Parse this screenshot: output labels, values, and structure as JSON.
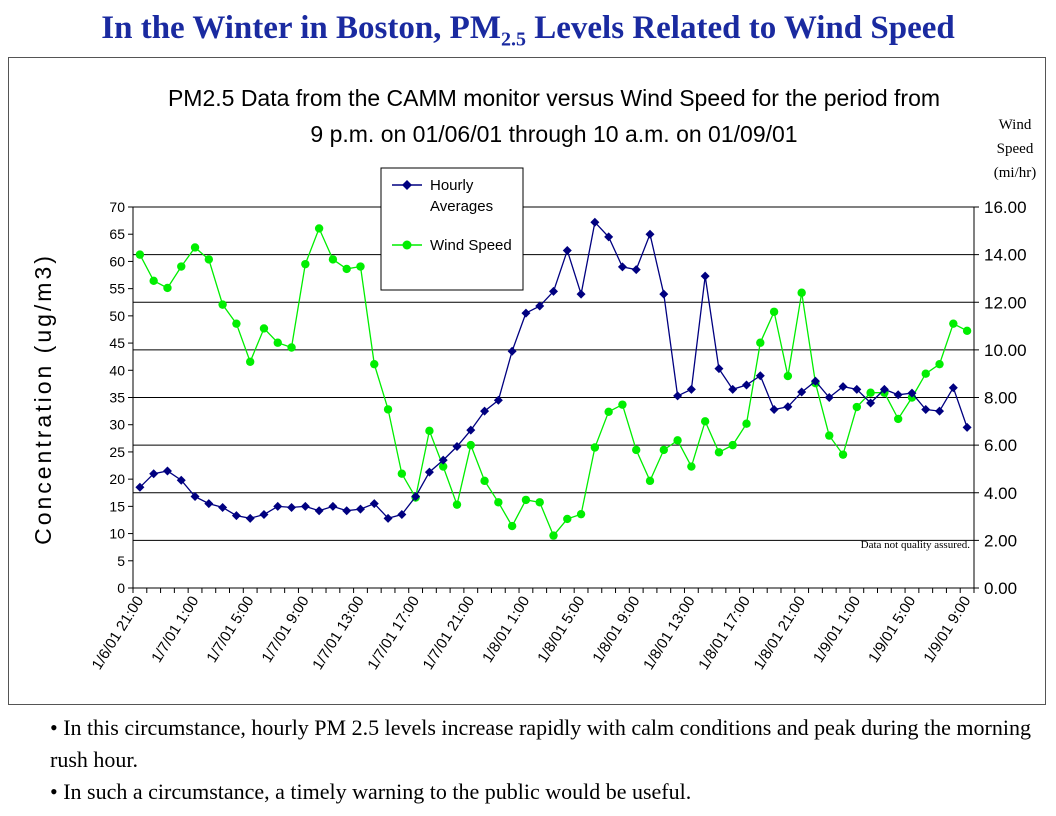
{
  "slide": {
    "title_main": "In the Winter in Boston, PM",
    "title_sub": "2.5",
    "title_rest": " Levels Related to Wind Speed",
    "bullets": [
      "• In this circumstance, hourly PM 2.5 levels increase rapidly with calm conditions and peak during the morning rush hour.",
      "• In such a circumstance, a timely warning to the public would be useful."
    ]
  },
  "colors": {
    "title": "#1a2aa0",
    "hourly_series": "#000080",
    "wind_series": "#00ee00"
  },
  "chart_data": {
    "type": "line",
    "title_lines": [
      "PM2.5 Data from the CAMM monitor versus Wind Speed for the period from",
      "9 p.m. on 01/06/01 through 10 a.m. on 01/09/01"
    ],
    "ylabel": "Concentration (ug/m3)",
    "y2label_lines": [
      "Wind",
      "Speed",
      "(mi/hr)"
    ],
    "ylim": [
      0,
      70
    ],
    "y2lim": [
      0,
      16
    ],
    "yticks": [
      "0",
      "5",
      "10",
      "15",
      "20",
      "25",
      "30",
      "35",
      "40",
      "45",
      "50",
      "55",
      "60",
      "65",
      "70"
    ],
    "y2ticks": [
      "0.00",
      "2.00",
      "4.00",
      "6.00",
      "8.00",
      "10.00",
      "12.00",
      "14.00",
      "16.00"
    ],
    "xticklabels": [
      "1/6/01 21:00",
      "1/7/01 1:00",
      "1/7/01 5:00",
      "1/7/01 9:00",
      "1/7/01 13:00",
      "1/7/01 17:00",
      "1/7/01 21:00",
      "1/8/01 1:00",
      "1/8/01 5:00",
      "1/8/01 9:00",
      "1/8/01 13:00",
      "1/8/01 17:00",
      "1/8/01 21:00",
      "1/9/01 1:00",
      "1/9/01 5:00",
      "1/9/01 9:00"
    ],
    "grid": true,
    "legend_position": "top-center",
    "annotation": "Data not quality assured.",
    "series": [
      {
        "name": "Hourly Averages",
        "axis": "left",
        "marker": "diamond",
        "values": [
          18.5,
          21,
          21.5,
          19.8,
          16.8,
          15.5,
          14.8,
          13.3,
          12.8,
          13.5,
          15,
          14.8,
          15,
          14.2,
          15,
          14.2,
          14.5,
          15.5,
          12.8,
          13.5,
          16.8,
          21.3,
          23.5,
          26,
          29,
          32.5,
          34.5,
          43.5,
          50.5,
          51.8,
          54.5,
          62,
          54,
          67.2,
          64.5,
          59,
          58.5,
          65,
          54,
          35.3,
          36.5,
          57.3,
          40.3,
          36.5,
          37.3,
          39,
          32.8,
          33.3,
          36,
          38,
          35,
          37,
          36.5,
          34,
          36.5,
          35.5,
          35.8,
          32.8,
          32.5,
          36.8,
          29.5
        ]
      },
      {
        "name": "Wind Speed",
        "axis": "right",
        "marker": "circle",
        "values": [
          14,
          12.9,
          12.6,
          13.5,
          14.3,
          13.8,
          11.9,
          11.1,
          9.5,
          10.9,
          10.3,
          10.1,
          13.6,
          15.1,
          13.8,
          13.4,
          13.5,
          9.4,
          7.5,
          4.8,
          3.8,
          6.6,
          5.1,
          3.5,
          6,
          4.5,
          3.6,
          2.6,
          3.7,
          3.6,
          2.2,
          2.9,
          3.1,
          5.9,
          7.4,
          7.7,
          5.8,
          4.5,
          5.8,
          6.2,
          5.1,
          7,
          5.7,
          6,
          6.9,
          10.3,
          11.6,
          8.9,
          12.4,
          8.6,
          6.4,
          5.6,
          7.6,
          8.2,
          8.2,
          7.1,
          8,
          9,
          9.4,
          11.1,
          10.8
        ]
      }
    ]
  }
}
